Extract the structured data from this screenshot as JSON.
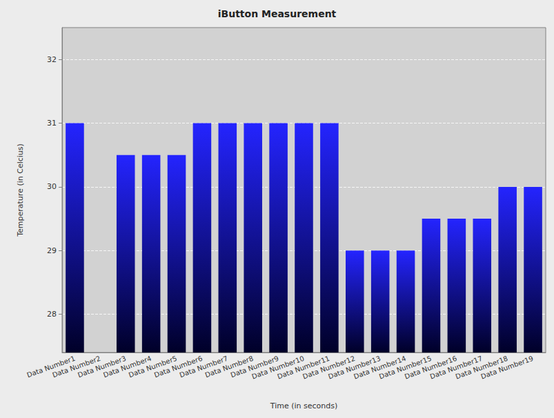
{
  "chart_data": {
    "type": "bar",
    "title": "iButton Measurement",
    "x_label": "Time (in seconds)",
    "y_label": "Temperature (in Celcius)",
    "categories": [
      "Data Number1",
      "Data Number2",
      "Data Number3",
      "Data Number4",
      "Data Number5",
      "Data Number6",
      "Data Number7",
      "Data Number8",
      "Data Number9",
      "Data Number10",
      "Data Number11",
      "Data Number12",
      "Data Number13",
      "Data Number14",
      "Data Number15",
      "Data Number16",
      "Data Number17",
      "Data Number18",
      "Data Number19"
    ],
    "values": [
      31,
      null,
      30.5,
      30.5,
      30.5,
      31,
      31,
      31,
      31,
      31,
      31,
      29,
      29,
      29,
      29.5,
      29.5,
      29.5,
      30,
      30
    ],
    "color": "#2424ff",
    "ylim": [
      27.4,
      32.5
    ],
    "yticks": [
      28,
      29,
      30,
      31,
      32
    ],
    "grid": true
  }
}
